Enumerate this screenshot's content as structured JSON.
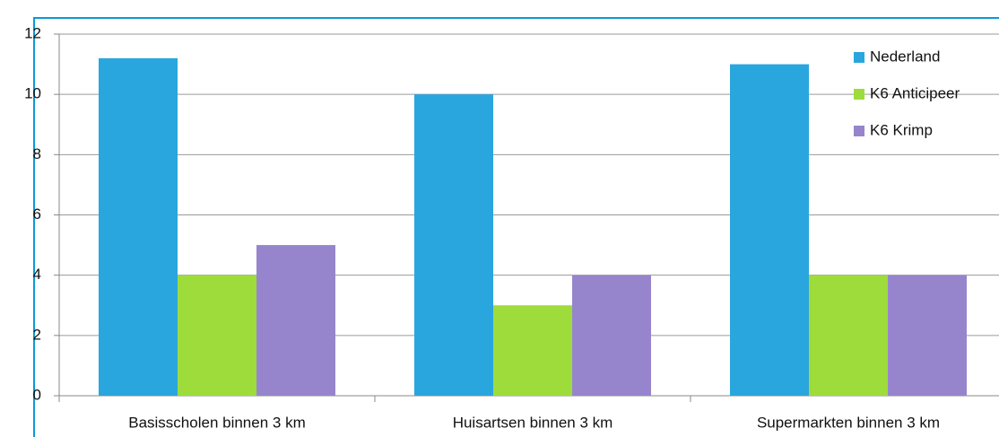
{
  "chart_data": {
    "type": "bar",
    "categories": [
      "Basisscholen binnen 3 km",
      "Huisartsen binnen 3 km",
      "Supermarkten binnen 3 km"
    ],
    "series": [
      {
        "name": "Nederland",
        "color": "#29a6dd",
        "values": [
          11.2,
          10,
          11
        ]
      },
      {
        "name": "K6 Anticipeer",
        "color": "#9edc3c",
        "values": [
          4,
          3,
          4
        ]
      },
      {
        "name": "K6 Krimp",
        "color": "#9685cc",
        "values": [
          5,
          4,
          4
        ]
      }
    ],
    "ylim": [
      0,
      12
    ],
    "yticks": [
      0,
      2,
      4,
      6,
      8,
      10,
      12
    ],
    "grid": true,
    "legend": "top-right"
  }
}
